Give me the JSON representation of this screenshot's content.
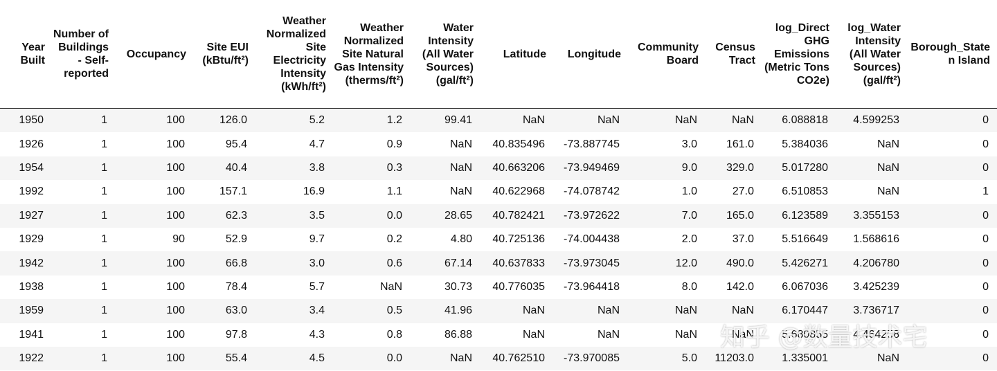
{
  "table": {
    "columns": [
      "Year Built",
      "Number of Buildings - Self-reported",
      "Occupancy",
      "Site EUI (kBtu/ft²)",
      "Weather Normalized Site Electricity Intensity (kWh/ft²)",
      "Weather Normalized Site Natural Gas Intensity (therms/ft²)",
      "Water Intensity (All Water Sources) (gal/ft²)",
      "Latitude",
      "Longitude",
      "Community Board",
      "Census Tract",
      "log_Direct GHG Emissions (Metric Tons CO2e)",
      "log_Water Intensity (All Water Sources) (gal/ft²)",
      "Borough_Staten Island"
    ],
    "rows": [
      [
        "1950",
        "1",
        "100",
        "126.0",
        "5.2",
        "1.2",
        "99.41",
        "NaN",
        "NaN",
        "NaN",
        "NaN",
        "6.088818",
        "4.599253",
        "0"
      ],
      [
        "1926",
        "1",
        "100",
        "95.4",
        "4.7",
        "0.9",
        "NaN",
        "40.835496",
        "-73.887745",
        "3.0",
        "161.0",
        "5.384036",
        "NaN",
        "0"
      ],
      [
        "1954",
        "1",
        "100",
        "40.4",
        "3.8",
        "0.3",
        "NaN",
        "40.663206",
        "-73.949469",
        "9.0",
        "329.0",
        "5.017280",
        "NaN",
        "0"
      ],
      [
        "1992",
        "1",
        "100",
        "157.1",
        "16.9",
        "1.1",
        "NaN",
        "40.622968",
        "-74.078742",
        "1.0",
        "27.0",
        "6.510853",
        "NaN",
        "1"
      ],
      [
        "1927",
        "1",
        "100",
        "62.3",
        "3.5",
        "0.0",
        "28.65",
        "40.782421",
        "-73.972622",
        "7.0",
        "165.0",
        "6.123589",
        "3.355153",
        "0"
      ],
      [
        "1929",
        "1",
        "90",
        "52.9",
        "9.7",
        "0.2",
        "4.80",
        "40.725136",
        "-74.004438",
        "2.0",
        "37.0",
        "5.516649",
        "1.568616",
        "0"
      ],
      [
        "1942",
        "1",
        "100",
        "66.8",
        "3.0",
        "0.6",
        "67.14",
        "40.637833",
        "-73.973045",
        "12.0",
        "490.0",
        "5.426271",
        "4.206780",
        "0"
      ],
      [
        "1938",
        "1",
        "100",
        "78.4",
        "5.7",
        "NaN",
        "30.73",
        "40.776035",
        "-73.964418",
        "8.0",
        "142.0",
        "6.067036",
        "3.425239",
        "0"
      ],
      [
        "1959",
        "1",
        "100",
        "63.0",
        "3.4",
        "0.5",
        "41.96",
        "NaN",
        "NaN",
        "NaN",
        "NaN",
        "6.170447",
        "3.736717",
        "0"
      ],
      [
        "1941",
        "1",
        "100",
        "97.8",
        "4.3",
        "0.8",
        "86.88",
        "NaN",
        "NaN",
        "NaN",
        "NaN",
        "5.680855",
        "4.464258",
        "0"
      ],
      [
        "1922",
        "1",
        "100",
        "55.4",
        "4.5",
        "0.0",
        "NaN",
        "40.762510",
        "-73.970085",
        "5.0",
        "11203.0",
        "1.335001",
        "NaN",
        "0"
      ]
    ]
  },
  "watermark": {
    "text": "知乎 @数量技术宅"
  }
}
